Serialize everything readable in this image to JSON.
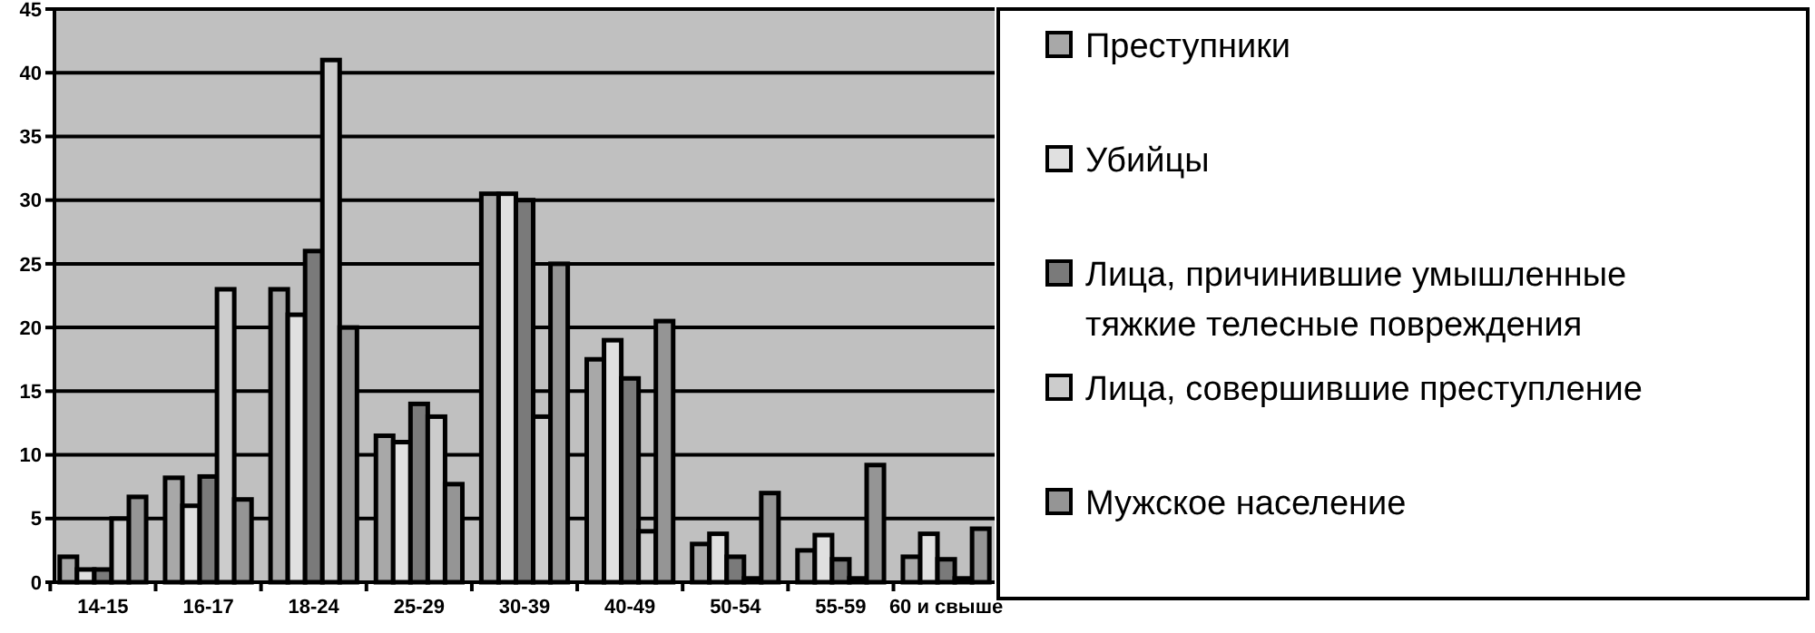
{
  "chart_data": {
    "type": "bar",
    "categories": [
      "14-15",
      "16-17",
      "18-24",
      "25-29",
      "30-39",
      "40-49",
      "50-54",
      "55-59",
      "60 и свыше"
    ],
    "series": [
      {
        "name": "Преступники",
        "color": "#a8a8a8",
        "values": [
          2,
          8.2,
          23,
          11.5,
          30.5,
          17.5,
          3,
          2.5,
          2
        ]
      },
      {
        "name": "Убийцы",
        "color": "#e0e0e0",
        "values": [
          1,
          6,
          21,
          11,
          30.5,
          19,
          3.8,
          3.7,
          3.8
        ]
      },
      {
        "name": "Лица, причинившие умышленные тяжкие телесные повреждения",
        "color": "#7a7a7a",
        "values": [
          1,
          8.3,
          26,
          14,
          30,
          16,
          2,
          1.8,
          1.8
        ]
      },
      {
        "name": "Лица, совершившие преступление",
        "color": "#cccccc",
        "values": [
          5,
          23,
          41,
          13,
          13,
          4,
          0.3,
          0.3,
          0.3
        ]
      },
      {
        "name": "Мужское население",
        "color": "#959595",
        "values": [
          6.7,
          6.5,
          20,
          7.7,
          25,
          20.5,
          7,
          9.2,
          4.2
        ]
      }
    ],
    "ylim": [
      0,
      45
    ],
    "yticks": [
      0,
      5,
      10,
      15,
      20,
      25,
      30,
      35,
      40,
      45
    ],
    "grid": "y",
    "legend": "right"
  }
}
